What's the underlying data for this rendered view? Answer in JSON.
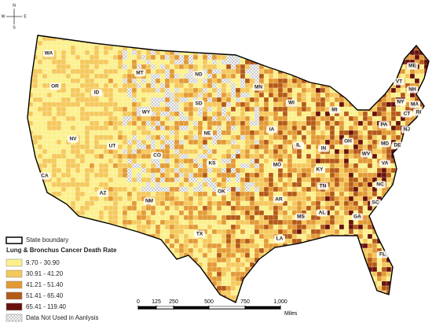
{
  "compass": {
    "north": "N",
    "east": "E",
    "south": "S",
    "west": "W"
  },
  "states": [
    "WA",
    "OR",
    "CA",
    "NV",
    "ID",
    "MT",
    "WY",
    "UT",
    "AZ",
    "CO",
    "NM",
    "ND",
    "SD",
    "NE",
    "KS",
    "OK",
    "TX",
    "MN",
    "IA",
    "MO",
    "AR",
    "LA",
    "WI",
    "IL",
    "MS",
    "MI",
    "IN",
    "KY",
    "TN",
    "AL",
    "OH",
    "WV",
    "VA",
    "NC",
    "SC",
    "GA",
    "FL",
    "PA",
    "NY",
    "VT",
    "NH",
    "ME",
    "MA",
    "CT",
    "RI",
    "NJ",
    "MD",
    "DE"
  ],
  "legend": {
    "boundary_label": "State boundary",
    "title": "Lung & Bronchus Cancer Death Rate",
    "items": [
      {
        "label": "9.70 - 30.90",
        "color": "#fcf08c"
      },
      {
        "label": "30.91 - 41.20",
        "color": "#f5c85c"
      },
      {
        "label": "41.21 - 51.40",
        "color": "#e39a35"
      },
      {
        "label": "51.41 - 65.40",
        "color": "#b45a17"
      },
      {
        "label": "65.41 - 119.40",
        "color": "#6a110c"
      }
    ],
    "no_data_label": "Data Not Used in Aanlysis"
  },
  "scale_bar": {
    "ticks": [
      "0",
      "125",
      "250",
      "500",
      "750",
      "1,000"
    ],
    "unit": "Miles"
  }
}
